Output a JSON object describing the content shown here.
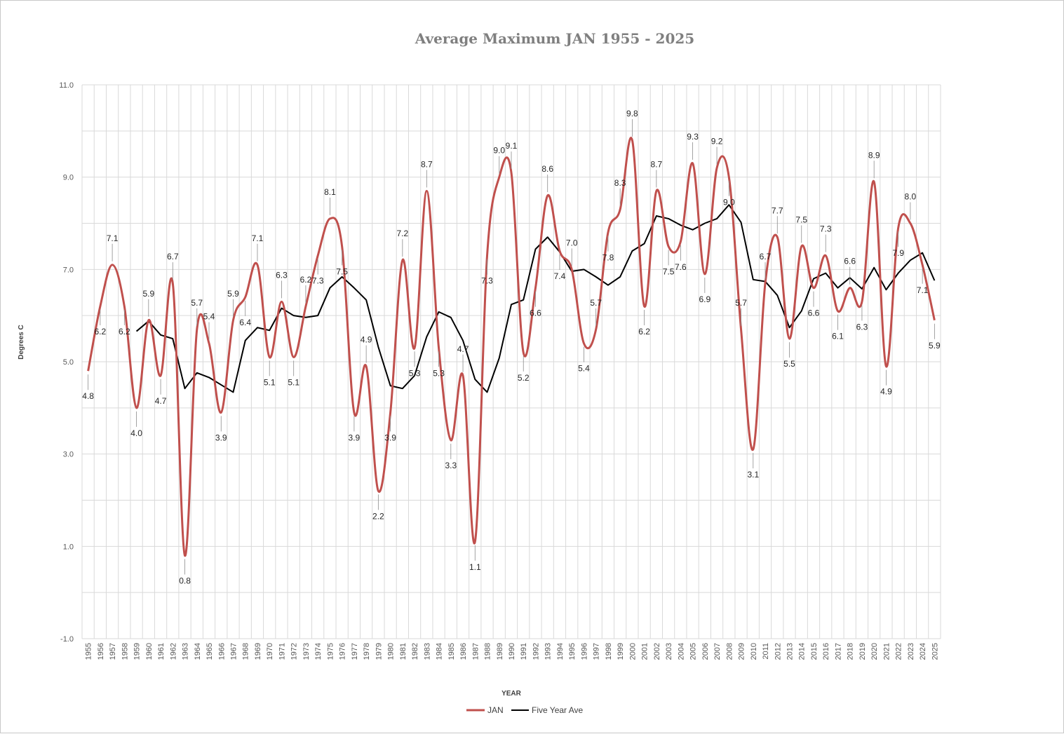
{
  "chart_data": {
    "type": "line",
    "title": "Average Maximum JAN 1955 - 2025",
    "xlabel": "YEAR",
    "ylabel": "Degrees C",
    "ylim": [
      -1.0,
      11.0
    ],
    "yticks": [
      "-1.0",
      "1.0",
      "3.0",
      "5.0",
      "7.0",
      "9.0",
      "11.0"
    ],
    "grid": true,
    "legend_position": "bottom",
    "x": [
      1955,
      1956,
      1957,
      1958,
      1959,
      1960,
      1961,
      1962,
      1963,
      1964,
      1965,
      1966,
      1967,
      1968,
      1969,
      1970,
      1971,
      1972,
      1973,
      1974,
      1975,
      1976,
      1977,
      1978,
      1979,
      1980,
      1981,
      1982,
      1983,
      1984,
      1985,
      1986,
      1987,
      1988,
      1989,
      1990,
      1991,
      1992,
      1993,
      1994,
      1995,
      1996,
      1997,
      1998,
      1999,
      2000,
      2001,
      2002,
      2003,
      2004,
      2005,
      2006,
      2007,
      2008,
      2009,
      2010,
      2011,
      2012,
      2013,
      2014,
      2015,
      2016,
      2017,
      2018,
      2019,
      2020,
      2021,
      2022,
      2023,
      2024,
      2025
    ],
    "series": [
      {
        "name": "JAN",
        "color": "#c0504d",
        "smooth": true,
        "values": [
          4.8,
          6.2,
          7.1,
          6.2,
          4.0,
          5.9,
          4.7,
          6.7,
          0.8,
          5.7,
          5.4,
          3.9,
          5.9,
          6.4,
          7.1,
          5.1,
          6.3,
          5.1,
          6.2,
          7.3,
          8.1,
          7.5,
          3.9,
          4.9,
          2.2,
          3.9,
          7.2,
          5.3,
          8.7,
          5.3,
          3.3,
          4.7,
          1.1,
          7.3,
          9.0,
          9.1,
          5.2,
          6.6,
          8.6,
          7.4,
          7.0,
          5.4,
          5.7,
          7.8,
          8.3,
          9.8,
          6.2,
          8.7,
          7.5,
          7.6,
          9.3,
          6.9,
          9.2,
          9.0,
          5.7,
          3.1,
          6.7,
          7.7,
          5.5,
          7.5,
          6.6,
          7.3,
          6.1,
          6.6,
          6.3,
          8.9,
          4.9,
          7.9,
          8.0,
          7.1,
          5.9
        ],
        "labels": [
          "4.8",
          "6.2",
          "7.1",
          "6.2",
          "4.0",
          "5.9",
          "4.7",
          "6.7",
          "0.8",
          "5.7",
          "5.4",
          "3.9",
          "5.9",
          "6.4",
          "7.1",
          "5.1",
          "6.3",
          "5.1",
          "6.2",
          "7.3",
          "8.1",
          "7.5",
          "3.9",
          "4.9",
          "2.2",
          "3.9",
          "7.2",
          "5.3",
          "8.7",
          "5.3",
          "3.3",
          "4.7",
          "1.1",
          "7.3",
          "9.0",
          "9.1",
          "5.2",
          "6.6",
          "8.6",
          "7.4",
          "7.0",
          "5.4",
          "5.7",
          "7.8",
          "8.3",
          "9.8",
          "6.2",
          "8.7",
          "7.5",
          "7.6",
          "9.3",
          "6.9",
          "9.2",
          "9.0",
          "5.7",
          "3.1",
          "6.7",
          "7.7",
          "5.5",
          "7.5",
          "6.6",
          "7.3",
          "6.1",
          "6.6",
          "6.3",
          "8.9",
          "4.9",
          "7.9",
          "8.0",
          "7.1",
          "5.9"
        ]
      },
      {
        "name": "Five Year Ave",
        "color": "#000000",
        "smooth": false,
        "values": [
          null,
          null,
          null,
          null,
          5.66,
          5.88,
          5.58,
          5.5,
          4.42,
          4.76,
          4.66,
          4.5,
          4.34,
          5.46,
          5.74,
          5.68,
          6.16,
          6.0,
          5.96,
          6.0,
          6.6,
          6.84,
          6.6,
          6.34,
          5.32,
          4.48,
          4.42,
          4.7,
          5.54,
          6.08,
          5.96,
          5.46,
          4.62,
          4.34,
          5.08,
          6.24,
          6.34,
          7.44,
          7.7,
          7.38,
          6.96,
          7.0,
          6.84,
          6.66,
          6.84,
          7.4,
          7.56,
          8.16,
          8.1,
          7.96,
          7.86,
          8.0,
          8.1,
          8.4,
          8.02,
          6.78,
          6.74,
          6.44,
          5.74,
          6.1,
          6.8,
          6.92,
          6.6,
          6.82,
          6.58,
          7.04,
          6.56,
          6.92,
          7.2,
          7.36,
          6.76
        ]
      }
    ]
  }
}
